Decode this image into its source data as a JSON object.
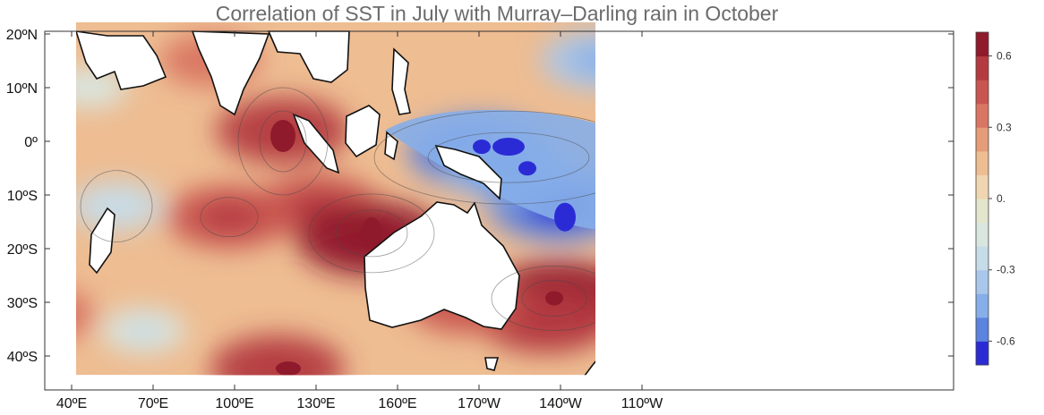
{
  "chart_data": {
    "type": "heatmap",
    "title": "Correlation of SST in July with Murray–Darling rain in October",
    "x_ticks": [
      "40ºE",
      "70ºE",
      "100ºE",
      "130ºE",
      "160ºE",
      "170ºW",
      "140ºW",
      "110ºW"
    ],
    "y_ticks": [
      "20ºN",
      "10ºN",
      "0º",
      "10ºS",
      "20ºS",
      "30ºS",
      "40ºS"
    ],
    "x_range_deg_east": [
      40,
      255
    ],
    "y_range_deg_north": [
      -45,
      22
    ],
    "colorbar": {
      "ticks": [
        "0.6",
        "0.3",
        "0.",
        "-0.3",
        "-0.6"
      ],
      "range": [
        -0.7,
        0.7
      ],
      "levels": [
        -0.7,
        -0.6,
        -0.5,
        -0.4,
        -0.3,
        -0.2,
        -0.1,
        0.0,
        0.1,
        0.2,
        0.3,
        0.4,
        0.5,
        0.6,
        0.7
      ],
      "colors": [
        "#2b2bd6",
        "#5b83df",
        "#86aee9",
        "#a9c7ea",
        "#c6dce8",
        "#d9e6e0",
        "#e3e6cc",
        "#f0d6b0",
        "#eebd92",
        "#e59c78",
        "#d97663",
        "#c95550",
        "#b43a40",
        "#8f1a2c"
      ]
    },
    "features": [
      {
        "name": "warm",
        "lon": 132,
        "lat": 2,
        "value": 0.5
      },
      {
        "name": "warm",
        "lon": 145,
        "lat": -12,
        "value": 0.45
      },
      {
        "name": "warm",
        "lon": 165,
        "lat": -18,
        "value": 0.6
      },
      {
        "name": "warm",
        "lon": 112,
        "lat": -14,
        "value": 0.45
      },
      {
        "name": "warm",
        "lon": 235,
        "lat": -29,
        "value": 0.6
      },
      {
        "name": "warm",
        "lon": 230,
        "lat": -33,
        "value": 0.5
      },
      {
        "name": "warm",
        "lon": 200,
        "lat": -30,
        "value": 0.4
      },
      {
        "name": "warm",
        "lon": 130,
        "lat": -42,
        "value": 0.5
      },
      {
        "name": "warm",
        "lon": 105,
        "lat": 15,
        "value": 0.3
      },
      {
        "name": "warm",
        "lon": 42,
        "lat": -32,
        "value": 0.35
      },
      {
        "name": "cool",
        "lon": 205,
        "lat": -2,
        "value": -0.55
      },
      {
        "name": "cool",
        "lon": 235,
        "lat": -12,
        "value": -0.55
      },
      {
        "name": "cool",
        "lon": 215,
        "lat": -5,
        "value": -0.45
      },
      {
        "name": "cool",
        "lon": 250,
        "lat": 15,
        "value": -0.4
      },
      {
        "name": "cool",
        "lon": 70,
        "lat": -12,
        "value": -0.25
      },
      {
        "name": "cool",
        "lon": 60,
        "lat": 10,
        "value": -0.15
      },
      {
        "name": "cool",
        "lon": 80,
        "lat": -35,
        "value": -0.2
      }
    ],
    "grid": false,
    "legend": "right"
  }
}
